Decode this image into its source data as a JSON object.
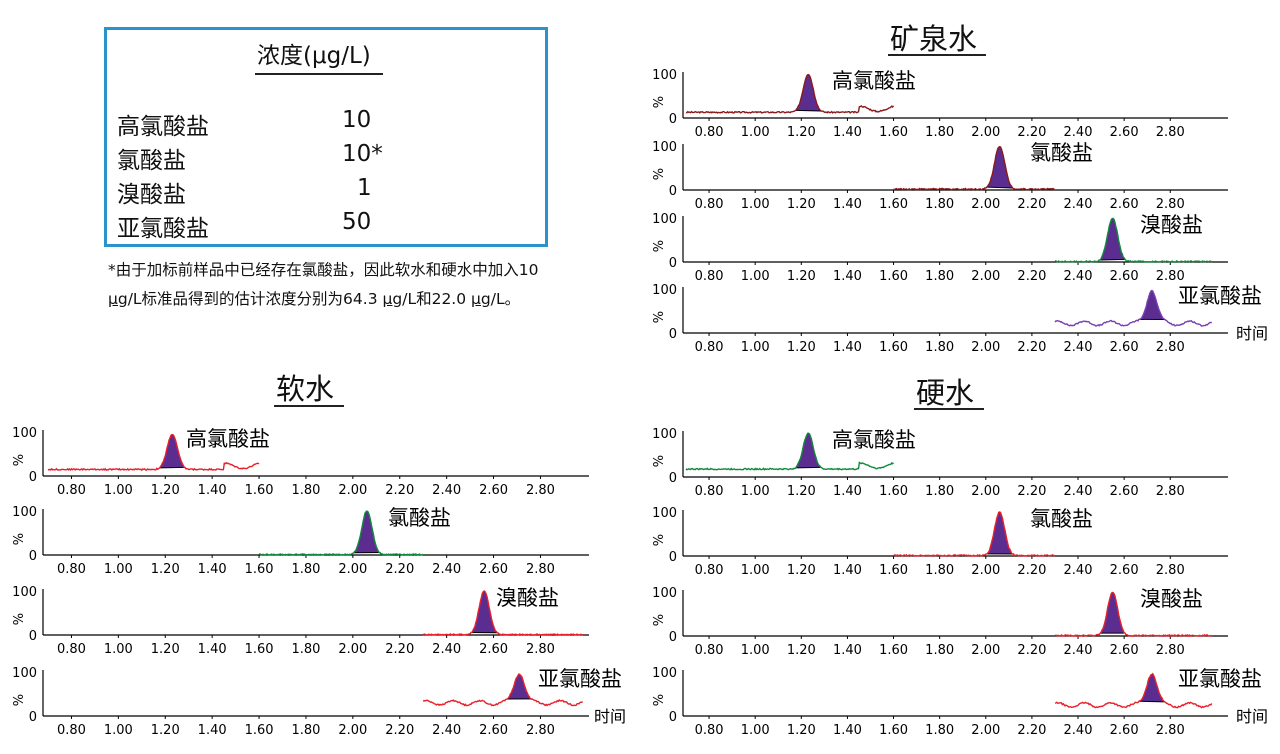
{
  "table": {
    "header": "浓度(μg/L)",
    "rows": [
      {
        "analyte": "高氯酸盐",
        "value": "10"
      },
      {
        "analyte": "氯酸盐",
        "value": "10*"
      },
      {
        "analyte": "溴酸盐",
        "value": "1"
      },
      {
        "analyte": "亚氯酸盐",
        "value": "50"
      }
    ]
  },
  "footnote": {
    "part1": "*由于加标前样品中已经存在氯酸盐，因此软水和硬水中加入10 ",
    "unit1": "μg",
    "part2": "/L标准品得到的估计浓度分别为64.3 ",
    "unit2": "μg",
    "part3": "/L和22.0 ",
    "unit3": "μg",
    "part4": "/L。"
  },
  "colors": {
    "peak_fill": "#5b2d91",
    "red_trace": "#e8202a",
    "green_trace": "#0f8a3c",
    "dark_red_trace": "#8b1a1a",
    "purple_trace": "#7a3fb0",
    "legend_border": "#2a93c9"
  },
  "chart_data": [
    {
      "type": "line",
      "title": "矿泉水",
      "xlabel": "时间",
      "ylabel": "%",
      "xlim": [
        0.7,
        2.98
      ],
      "ylim": [
        0,
        100
      ],
      "x_ticks": [
        "0.80",
        "1.00",
        "1.20",
        "1.40",
        "1.60",
        "1.80",
        "2.00",
        "2.20",
        "2.40",
        "2.60",
        "2.80"
      ],
      "y_ticks": [
        "0",
        "100"
      ],
      "traces": [
        {
          "name": "高氯酸盐",
          "color": "dark_red",
          "x_range": [
            0.7,
            1.6
          ],
          "retention_time": 1.23,
          "peak_height": 100,
          "baseline": 13
        },
        {
          "name": "氯酸盐",
          "color": "dark_red",
          "x_range": [
            1.6,
            2.3
          ],
          "retention_time": 2.06,
          "peak_height": 100,
          "baseline": 2
        },
        {
          "name": "溴酸盐",
          "color": "green",
          "x_range": [
            2.3,
            2.98
          ],
          "retention_time": 2.55,
          "peak_height": 100,
          "baseline": 1
        },
        {
          "name": "亚氯酸盐",
          "color": "purple",
          "x_range": [
            2.3,
            2.98
          ],
          "retention_time": 2.72,
          "peak_height": 100,
          "baseline": 22
        }
      ]
    },
    {
      "type": "line",
      "title": "软水",
      "xlabel": "时间",
      "ylabel": "%",
      "xlim": [
        0.7,
        2.98
      ],
      "ylim": [
        0,
        100
      ],
      "x_ticks": [
        "0.80",
        "1.00",
        "1.20",
        "1.40",
        "1.60",
        "1.80",
        "2.00",
        "2.20",
        "2.40",
        "2.60",
        "2.80"
      ],
      "y_ticks": [
        "0",
        "100"
      ],
      "traces": [
        {
          "name": "高氯酸盐",
          "color": "red",
          "x_range": [
            0.7,
            1.6
          ],
          "retention_time": 1.23,
          "peak_height": 95,
          "baseline": 15
        },
        {
          "name": "氯酸盐",
          "color": "green",
          "x_range": [
            1.6,
            2.3
          ],
          "retention_time": 2.06,
          "peak_height": 100,
          "baseline": 1
        },
        {
          "name": "溴酸盐",
          "color": "red",
          "x_range": [
            2.3,
            2.98
          ],
          "retention_time": 2.56,
          "peak_height": 100,
          "baseline": 1
        },
        {
          "name": "亚氯酸盐",
          "color": "red",
          "x_range": [
            2.3,
            2.98
          ],
          "retention_time": 2.71,
          "peak_height": 100,
          "baseline": 30
        }
      ]
    },
    {
      "type": "line",
      "title": "硬水",
      "xlabel": "时间",
      "ylabel": "%",
      "xlim": [
        0.7,
        2.98
      ],
      "ylim": [
        0,
        100
      ],
      "x_ticks": [
        "0.80",
        "1.00",
        "1.20",
        "1.40",
        "1.60",
        "1.80",
        "2.00",
        "2.20",
        "2.40",
        "2.60",
        "2.80"
      ],
      "y_ticks": [
        "0",
        "100"
      ],
      "traces": [
        {
          "name": "高氯酸盐",
          "color": "green",
          "x_range": [
            0.7,
            1.6
          ],
          "retention_time": 1.23,
          "peak_height": 100,
          "baseline": 18
        },
        {
          "name": "氯酸盐",
          "color": "red",
          "x_range": [
            1.6,
            2.3
          ],
          "retention_time": 2.06,
          "peak_height": 100,
          "baseline": 1
        },
        {
          "name": "溴酸盐",
          "color": "red",
          "x_range": [
            2.3,
            2.98
          ],
          "retention_time": 2.55,
          "peak_height": 100,
          "baseline": 1
        },
        {
          "name": "亚氯酸盐",
          "color": "red",
          "x_range": [
            2.3,
            2.98
          ],
          "retention_time": 2.72,
          "peak_height": 100,
          "baseline": 25
        }
      ]
    }
  ]
}
